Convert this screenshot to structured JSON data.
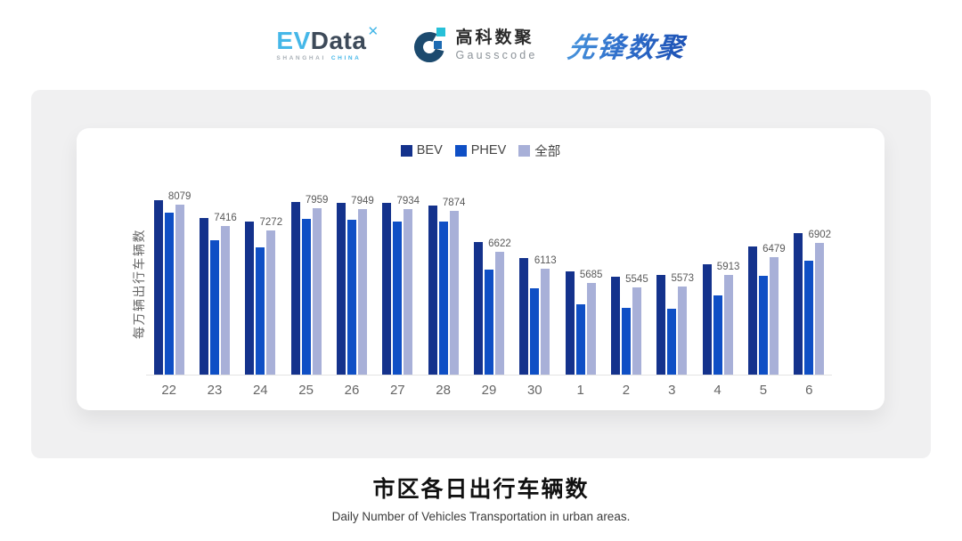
{
  "header": {
    "evdata": {
      "ev": "EV",
      "data": "Data",
      "mark": "✕",
      "sub_left": "SHANGHAI",
      "sub_right": "CHINA"
    },
    "gausscode": {
      "cn": "高科数聚",
      "en": "Gausscode"
    },
    "pioneer": {
      "text": "先锋数聚"
    }
  },
  "chart_data": {
    "type": "bar",
    "title": "市区各日出行车辆数",
    "subtitle": "Daily Number of Vehicles Transportation in urban areas.",
    "ylabel": "每万辆出行车辆数",
    "xlabel": "",
    "categories": [
      "22",
      "23",
      "24",
      "25",
      "26",
      "27",
      "28",
      "29",
      "30",
      "1",
      "2",
      "3",
      "4",
      "5",
      "6"
    ],
    "series": [
      {
        "name": "BEV",
        "color": "#14328c",
        "values": [
          8220,
          7675,
          7565,
          8165,
          8140,
          8140,
          8055,
          6940,
          6450,
          6045,
          5880,
          5935,
          6260,
          6805,
          7215
        ]
      },
      {
        "name": "PHEV",
        "color": "#0f4fc5",
        "values": [
          7840,
          6995,
          6775,
          7650,
          7620,
          7565,
          7565,
          6095,
          5525,
          5035,
          4930,
          4900,
          5310,
          5905,
          6370
        ]
      },
      {
        "name": "全部",
        "color": "#a8b0d8",
        "data_labels": true,
        "values": [
          8079,
          7416,
          7272,
          7959,
          7949,
          7934,
          7874,
          6622,
          6113,
          5685,
          5545,
          5573,
          5913,
          6479,
          6902
        ]
      }
    ],
    "data_labels": [
      "8079",
      "7416",
      "7272",
      "7959",
      "7949",
      "7934",
      "7874",
      "6622",
      "6113",
      "5685",
      "5545",
      "5573",
      "5913",
      "6479",
      "6902"
    ],
    "legend_position": "top",
    "grid": false,
    "ylim": [
      2880,
      8400
    ]
  },
  "colors": {
    "panel_bg": "#f0f0f1",
    "card_bg": "#ffffff",
    "axis_line": "#e3e3e3",
    "tick_label": "#666666",
    "data_label": "#595959"
  }
}
